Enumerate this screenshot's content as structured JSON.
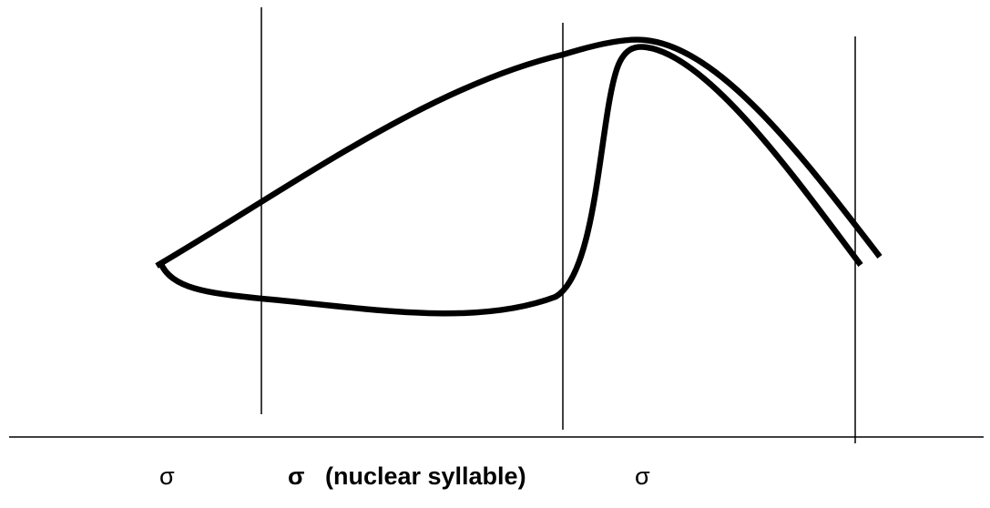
{
  "diagram": {
    "line_color": "#000000",
    "background_color": "#ffffff",
    "labels": {
      "left_syllable": "σ",
      "nuclear_syllable": "σ   (nuclear syllable)",
      "right_syllable": "σ"
    },
    "curves": [
      {
        "name": "upper-pitch-contour"
      },
      {
        "name": "lower-pitch-contour"
      }
    ]
  }
}
